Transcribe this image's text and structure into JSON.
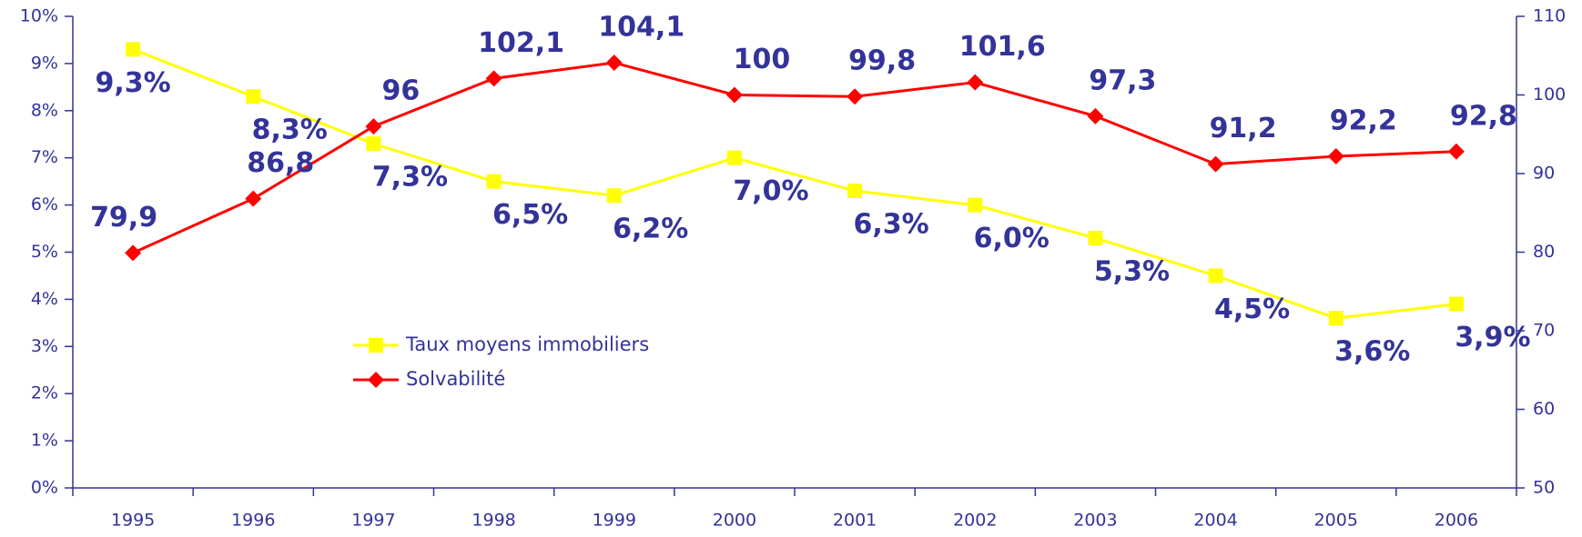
{
  "chart_data": {
    "type": "line",
    "categories": [
      "1995",
      "1996",
      "1997",
      "1998",
      "1999",
      "2000",
      "2001",
      "2002",
      "2003",
      "2004",
      "2005",
      "2006"
    ],
    "series": [
      {
        "name": "Taux moyens immobiliers",
        "color": "#ffff00",
        "marker": "square",
        "values": [
          9.3,
          8.3,
          7.3,
          6.5,
          6.2,
          7.0,
          6.3,
          6.0,
          5.3,
          4.5,
          3.6,
          3.9
        ],
        "value_labels": [
          "9,3%",
          "8,3%",
          "7,3%",
          "6,5%",
          "6,2%",
          "7,0%",
          "6,3%",
          "6,0%",
          "5,3%",
          "4,5%",
          "3,6%",
          "3,9%"
        ]
      },
      {
        "name": "Solvabilité",
        "color": "#ff0000",
        "marker": "diamond",
        "axis": "y2",
        "values": [
          79.9,
          86.8,
          96,
          102.1,
          104.1,
          100,
          99.8,
          101.6,
          97.3,
          91.2,
          92.2,
          92.8
        ],
        "value_labels": [
          "79,9",
          "86,8",
          "96",
          "102,1",
          "104,1",
          "100",
          "99,8",
          "101,6",
          "97,3",
          "91,2",
          "92,2",
          "92,8"
        ]
      }
    ],
    "ylim": [
      0,
      10
    ],
    "yticks": [
      {
        "value": 0,
        "label": "0%"
      },
      {
        "value": 1,
        "label": "1%"
      },
      {
        "value": 2,
        "label": "2%"
      },
      {
        "value": 3,
        "label": "3%"
      },
      {
        "value": 4,
        "label": "4%"
      },
      {
        "value": 5,
        "label": "5%"
      },
      {
        "value": 6,
        "label": "6%"
      },
      {
        "value": 7,
        "label": "7%"
      },
      {
        "value": 8,
        "label": "8%"
      },
      {
        "value": 9,
        "label": "9%"
      },
      {
        "value": 10,
        "label": "10%"
      }
    ],
    "y2lim": [
      50,
      110
    ],
    "y2ticks": [
      50,
      60,
      70,
      80,
      90,
      100,
      110
    ],
    "axis_color": "#333399",
    "grid": false
  }
}
